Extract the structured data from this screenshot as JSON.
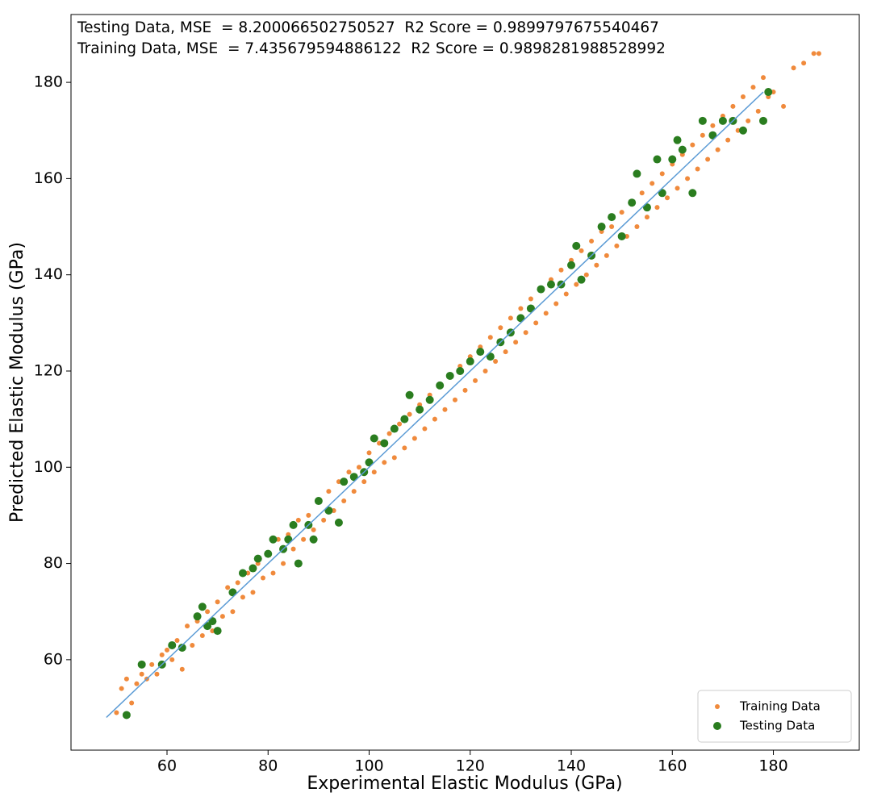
{
  "chart_data": {
    "type": "scatter",
    "annotations": [
      "Testing Data, MSE  = 8.200066502750527  R2 Score = 0.9899797675540467",
      "Training Data, MSE  = 7.435679594886122  R2 Score = 0.9898281988528992"
    ],
    "xlabel": "Experimental Elastic Modulus (GPa)",
    "ylabel": "Predicted Elastic Modulus (GPa)",
    "xlim": [
      41,
      197
    ],
    "ylim": [
      41.2,
      194.1
    ],
    "xticks": [
      60,
      80,
      100,
      120,
      140,
      160,
      180
    ],
    "yticks": [
      60,
      80,
      100,
      120,
      140,
      160,
      180
    ],
    "grid": false,
    "legend": "lower right",
    "line": {
      "color": "#5b9bd5",
      "x": [
        48,
        178
      ],
      "values": [
        48,
        178
      ]
    },
    "series": [
      {
        "name": "Training Data",
        "color": "#f08a3c",
        "x": [
          50,
          51,
          52,
          53,
          54,
          55,
          56,
          57,
          58,
          59,
          60,
          61,
          62,
          63,
          64,
          65,
          66,
          67,
          68,
          69,
          70,
          71,
          72,
          73,
          74,
          75,
          76,
          77,
          78,
          79,
          80,
          81,
          82,
          83,
          84,
          85,
          86,
          87,
          88,
          89,
          90,
          91,
          92,
          93,
          94,
          95,
          96,
          97,
          98,
          99,
          100,
          101,
          102,
          103,
          104,
          105,
          106,
          107,
          108,
          109,
          110,
          111,
          112,
          113,
          114,
          115,
          116,
          117,
          118,
          119,
          120,
          121,
          122,
          123,
          124,
          125,
          126,
          127,
          128,
          129,
          130,
          131,
          132,
          133,
          134,
          135,
          136,
          137,
          138,
          139,
          140,
          141,
          142,
          143,
          144,
          145,
          146,
          147,
          148,
          149,
          150,
          151,
          152,
          153,
          154,
          155,
          156,
          157,
          158,
          159,
          160,
          161,
          162,
          163,
          164,
          165,
          166,
          167,
          168,
          169,
          170,
          171,
          172,
          173,
          174,
          175,
          176,
          177,
          178,
          179,
          180,
          182,
          184,
          186,
          188,
          189
        ],
        "values": [
          49,
          54,
          56,
          51,
          55,
          57,
          56,
          59,
          57,
          61,
          62,
          60,
          64,
          58,
          67,
          63,
          68,
          65,
          70,
          66,
          72,
          69,
          75,
          70,
          76,
          73,
          78,
          74,
          80,
          77,
          82,
          78,
          85,
          80,
          86,
          83,
          89,
          85,
          90,
          87,
          93,
          89,
          95,
          91,
          97,
          93,
          99,
          95,
          100,
          97,
          103,
          99,
          105,
          101,
          107,
          102,
          109,
          104,
          111,
          106,
          113,
          108,
          115,
          110,
          117,
          112,
          119,
          114,
          121,
          116,
          123,
          118,
          125,
          120,
          127,
          122,
          129,
          124,
          131,
          126,
          133,
          128,
          135,
          130,
          137,
          132,
          139,
          134,
          141,
          136,
          143,
          138,
          145,
          140,
          147,
          142,
          149,
          144,
          150,
          146,
          153,
          148,
          155,
          150,
          157,
          152,
          159,
          154,
          161,
          156,
          163,
          158,
          165,
          160,
          167,
          162,
          169,
          164,
          171,
          166,
          173,
          168,
          175,
          170,
          177,
          172,
          179,
          174,
          181,
          177,
          178,
          175,
          183,
          184,
          186,
          186
        ]
      },
      {
        "name": "Testing Data",
        "color": "#2a7d1f",
        "x": [
          52,
          55,
          59,
          61,
          63,
          66,
          67,
          68,
          69,
          70,
          73,
          75,
          77,
          78,
          80,
          81,
          83,
          84,
          85,
          86,
          88,
          89,
          90,
          92,
          94,
          95,
          97,
          99,
          100,
          101,
          103,
          105,
          107,
          108,
          110,
          112,
          114,
          116,
          118,
          120,
          122,
          124,
          126,
          128,
          130,
          132,
          134,
          136,
          138,
          140,
          141,
          142,
          144,
          146,
          148,
          150,
          152,
          153,
          155,
          157,
          158,
          160,
          161,
          162,
          164,
          166,
          168,
          170,
          172,
          174,
          178,
          179
        ],
        "values": [
          48.5,
          59,
          59,
          63,
          62.5,
          69,
          71,
          67,
          68,
          66,
          74,
          78,
          79,
          81,
          82,
          85,
          83,
          85,
          88,
          80,
          88,
          85,
          93,
          91,
          88.5,
          97,
          98,
          99,
          101,
          106,
          105,
          108,
          110,
          115,
          112,
          114,
          117,
          119,
          120,
          122,
          124,
          123,
          126,
          128,
          131,
          133,
          137,
          138,
          138,
          142,
          146,
          139,
          144,
          150,
          152,
          148,
          155,
          161,
          154,
          164,
          157,
          164,
          168,
          166,
          157,
          172,
          169,
          172,
          172,
          170,
          172,
          178
        ]
      }
    ]
  }
}
